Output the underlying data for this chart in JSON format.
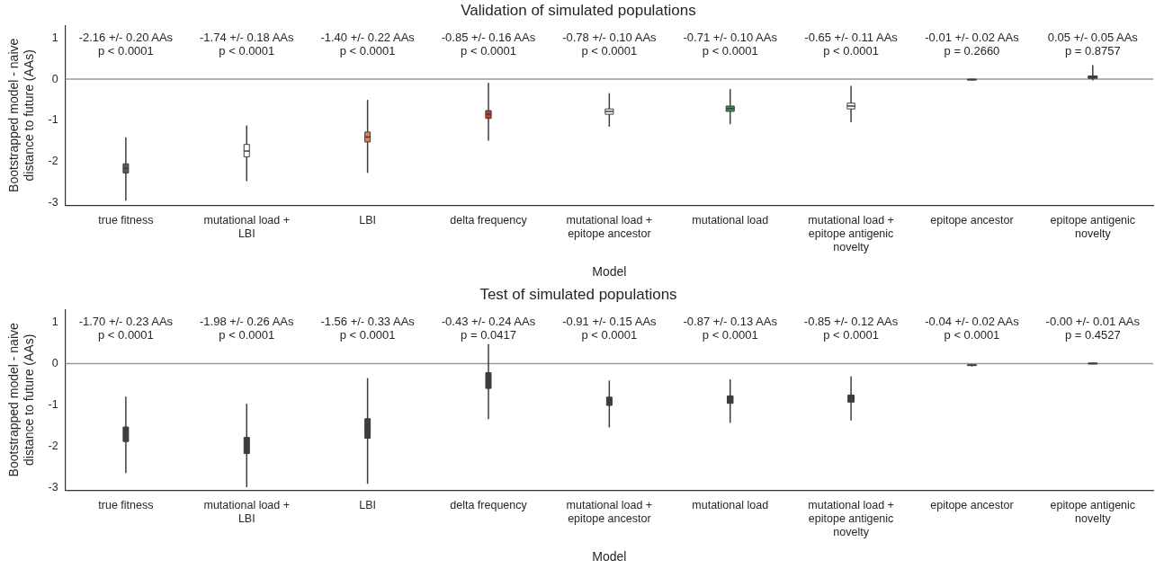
{
  "chart_data": [
    {
      "type": "box",
      "title": "Validation of simulated populations",
      "xlabel": "Model",
      "ylabel": "Bootstrapped model - naive distance to future (AAs)",
      "categories": [
        "true fitness",
        "mutational load + LBI",
        "LBI",
        "delta frequency",
        "mutational load + epitope ancestor",
        "mutational load",
        "mutational load + epitope antigenic novelty",
        "epitope ancestor",
        "epitope antigenic novelty"
      ],
      "boxes": [
        {
          "low": -2.94,
          "q1": -2.27,
          "median": -2.16,
          "q3": -2.05,
          "high": -1.41
        },
        {
          "low": -2.47,
          "q1": -1.88,
          "median": -1.74,
          "q3": -1.58,
          "high": -1.12
        },
        {
          "low": -2.27,
          "q1": -1.52,
          "median": -1.4,
          "q3": -1.28,
          "high": -0.5
        },
        {
          "low": -1.49,
          "q1": -0.95,
          "median": -0.85,
          "q3": -0.76,
          "high": -0.09
        },
        {
          "low": -1.15,
          "q1": -0.85,
          "median": -0.78,
          "q3": -0.72,
          "high": -0.34
        },
        {
          "low": -1.09,
          "q1": -0.78,
          "median": -0.71,
          "q3": -0.65,
          "high": -0.24
        },
        {
          "low": -1.04,
          "q1": -0.72,
          "median": -0.65,
          "q3": -0.58,
          "high": -0.16
        },
        {
          "low": -0.03,
          "q1": -0.02,
          "median": -0.01,
          "q3": 0.0,
          "high": 0.01
        },
        {
          "low": -0.03,
          "q1": 0.02,
          "median": 0.05,
          "q3": 0.08,
          "high": 0.34
        }
      ],
      "colors": [
        "#5a5a5a",
        "#ffffff",
        "#d9844f",
        "#c53a2d",
        "#ffffff",
        "#2e9a55",
        "#ffffff",
        "#4a7fc1",
        "#3a4a66"
      ],
      "ylim": [
        -3.05,
        1.3
      ],
      "yticks": [
        -3,
        -2,
        -1,
        0,
        1
      ],
      "ref_lines": [
        {
          "axis": "y",
          "value": 0,
          "color": "#999999"
        }
      ],
      "annotations": [
        "-2.16 +/- 0.20 AAs\np < 0.0001",
        "-1.74 +/- 0.18 AAs\np < 0.0001",
        "-1.40 +/- 0.22 AAs\np < 0.0001",
        "-0.85 +/- 0.16 AAs\np < 0.0001",
        "-0.78 +/- 0.10 AAs\np < 0.0001",
        "-0.71 +/- 0.10 AAs\np < 0.0001",
        "-0.65 +/- 0.11 AAs\np < 0.0001",
        "-0.01 +/- 0.02 AAs\np = 0.2660",
        "0.05 +/- 0.05 AAs\np = 0.8757"
      ]
    },
    {
      "type": "box",
      "title": "Test of simulated populations",
      "xlabel": "Model",
      "ylabel": "Bootstrapped model - naive distance to future (AAs)",
      "categories": [
        "true fitness",
        "mutational load + LBI",
        "LBI",
        "delta frequency",
        "mutational load + epitope ancestor",
        "mutational load",
        "mutational load + epitope antigenic novelty",
        "epitope ancestor",
        "epitope antigenic novelty"
      ],
      "boxes": [
        {
          "low": -2.64,
          "q1": -1.88,
          "median": -1.7,
          "q3": -1.53,
          "high": -0.8
        },
        {
          "low": -2.98,
          "q1": -2.17,
          "median": -1.98,
          "q3": -1.78,
          "high": -0.97
        },
        {
          "low": -2.9,
          "q1": -1.8,
          "median": -1.56,
          "q3": -1.33,
          "high": -0.35
        },
        {
          "low": -1.34,
          "q1": -0.6,
          "median": -0.43,
          "q3": -0.22,
          "high": 0.47
        },
        {
          "low": -1.54,
          "q1": -1.01,
          "median": -0.91,
          "q3": -0.81,
          "high": -0.41
        },
        {
          "low": -1.43,
          "q1": -0.96,
          "median": -0.87,
          "q3": -0.78,
          "high": -0.38
        },
        {
          "low": -1.37,
          "q1": -0.93,
          "median": -0.85,
          "q3": -0.76,
          "high": -0.31
        },
        {
          "low": -0.07,
          "q1": -0.05,
          "median": -0.04,
          "q3": -0.03,
          "high": -0.02
        },
        {
          "low": -0.02,
          "q1": -0.01,
          "median": 0.0,
          "q3": 0.01,
          "high": 0.02
        }
      ],
      "colors": [
        "#3d3d3d",
        "#3d3d3d",
        "#3d3d3d",
        "#3d3d3d",
        "#3d3d3d",
        "#3d3d3d",
        "#3d3d3d",
        "#4a7fc1",
        "#3d3d3d"
      ],
      "ylim": [
        -3.05,
        1.3
      ],
      "yticks": [
        -3,
        -2,
        -1,
        0,
        1
      ],
      "ref_lines": [
        {
          "axis": "y",
          "value": 0,
          "color": "#999999"
        }
      ],
      "annotations": [
        "-1.70 +/- 0.23 AAs\np < 0.0001",
        "-1.98 +/- 0.26 AAs\np < 0.0001",
        "-1.56 +/- 0.33 AAs\np < 0.0001",
        "-0.43 +/- 0.24 AAs\np = 0.0417",
        "-0.91 +/- 0.15 AAs\np < 0.0001",
        "-0.87 +/- 0.13 AAs\np < 0.0001",
        "-0.85 +/- 0.12 AAs\np < 0.0001",
        "-0.04 +/- 0.02 AAs\np < 0.0001",
        "-0.00 +/- 0.01 AAs\np = 0.4527"
      ]
    }
  ]
}
